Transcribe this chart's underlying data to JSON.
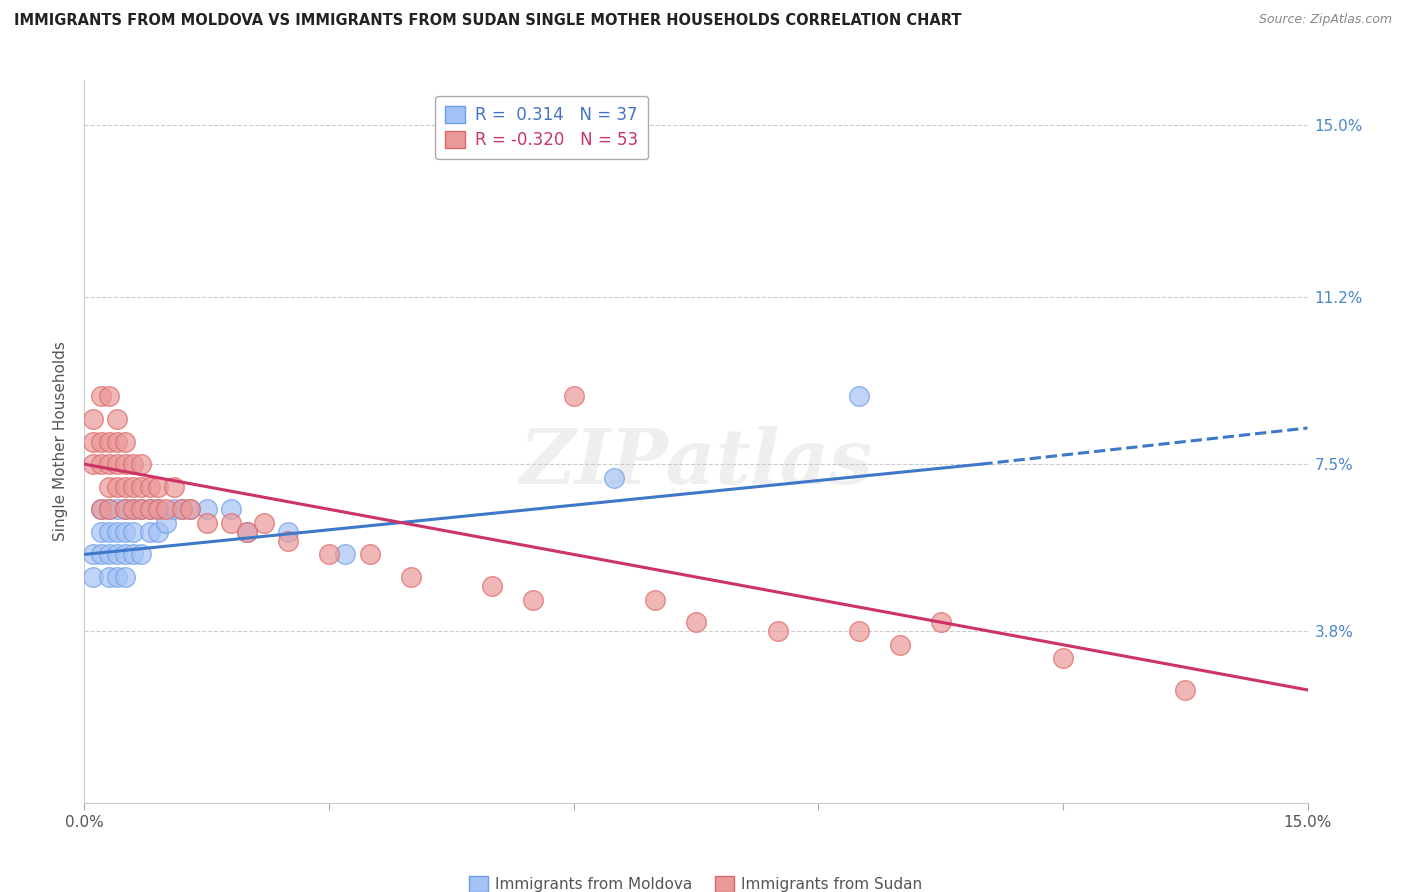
{
  "title": "IMMIGRANTS FROM MOLDOVA VS IMMIGRANTS FROM SUDAN SINGLE MOTHER HOUSEHOLDS CORRELATION CHART",
  "source": "Source: ZipAtlas.com",
  "ylabel": "Single Mother Households",
  "xlim": [
    0.0,
    0.15
  ],
  "ylim": [
    0.0,
    0.16
  ],
  "yticks": [
    0.038,
    0.075,
    0.112,
    0.15
  ],
  "ytick_labels": [
    "3.8%",
    "7.5%",
    "11.2%",
    "15.0%"
  ],
  "xticks": [
    0.0,
    0.03,
    0.06,
    0.09,
    0.12,
    0.15
  ],
  "xtick_labels": [
    "0.0%",
    "",
    "",
    "",
    "",
    "15.0%"
  ],
  "right_ytick_labels": [
    "3.8%",
    "7.5%",
    "11.2%",
    "15.0%"
  ],
  "moldova_color": "#a4c2f4",
  "moldova_color_edge": "#6d9eeb",
  "sudan_color": "#ea9999",
  "sudan_color_edge": "#e06666",
  "moldova_R": 0.314,
  "moldova_N": 37,
  "sudan_R": -0.32,
  "sudan_N": 53,
  "line_color_moldova": "#3d78c9",
  "line_color_sudan": "#cc3366",
  "watermark": "ZIPatlas",
  "legend_label_moldova": "Immigrants from Moldova",
  "legend_label_sudan": "Immigrants from Sudan",
  "moldova_x": [
    0.001,
    0.001,
    0.002,
    0.002,
    0.002,
    0.003,
    0.003,
    0.003,
    0.003,
    0.004,
    0.004,
    0.004,
    0.004,
    0.005,
    0.005,
    0.005,
    0.005,
    0.006,
    0.006,
    0.006,
    0.007,
    0.007,
    0.008,
    0.008,
    0.009,
    0.009,
    0.01,
    0.011,
    0.012,
    0.013,
    0.015,
    0.018,
    0.02,
    0.025,
    0.032,
    0.065,
    0.095
  ],
  "moldova_y": [
    0.055,
    0.05,
    0.06,
    0.055,
    0.065,
    0.05,
    0.055,
    0.06,
    0.065,
    0.05,
    0.055,
    0.06,
    0.065,
    0.05,
    0.055,
    0.06,
    0.065,
    0.055,
    0.06,
    0.065,
    0.055,
    0.065,
    0.06,
    0.065,
    0.06,
    0.065,
    0.062,
    0.065,
    0.065,
    0.065,
    0.065,
    0.065,
    0.06,
    0.06,
    0.055,
    0.072,
    0.09
  ],
  "sudan_x": [
    0.001,
    0.001,
    0.001,
    0.002,
    0.002,
    0.002,
    0.002,
    0.003,
    0.003,
    0.003,
    0.003,
    0.003,
    0.004,
    0.004,
    0.004,
    0.004,
    0.005,
    0.005,
    0.005,
    0.005,
    0.006,
    0.006,
    0.006,
    0.007,
    0.007,
    0.007,
    0.008,
    0.008,
    0.009,
    0.009,
    0.01,
    0.011,
    0.012,
    0.013,
    0.015,
    0.018,
    0.02,
    0.022,
    0.025,
    0.03,
    0.035,
    0.04,
    0.05,
    0.055,
    0.06,
    0.07,
    0.075,
    0.085,
    0.095,
    0.1,
    0.105,
    0.12,
    0.135
  ],
  "sudan_y": [
    0.075,
    0.08,
    0.085,
    0.065,
    0.075,
    0.08,
    0.09,
    0.065,
    0.07,
    0.075,
    0.08,
    0.09,
    0.07,
    0.075,
    0.08,
    0.085,
    0.065,
    0.07,
    0.075,
    0.08,
    0.065,
    0.07,
    0.075,
    0.065,
    0.07,
    0.075,
    0.065,
    0.07,
    0.065,
    0.07,
    0.065,
    0.07,
    0.065,
    0.065,
    0.062,
    0.062,
    0.06,
    0.062,
    0.058,
    0.055,
    0.055,
    0.05,
    0.048,
    0.045,
    0.09,
    0.045,
    0.04,
    0.038,
    0.038,
    0.035,
    0.04,
    0.032,
    0.025
  ],
  "background_color": "#ffffff",
  "grid_color": "#cccccc"
}
